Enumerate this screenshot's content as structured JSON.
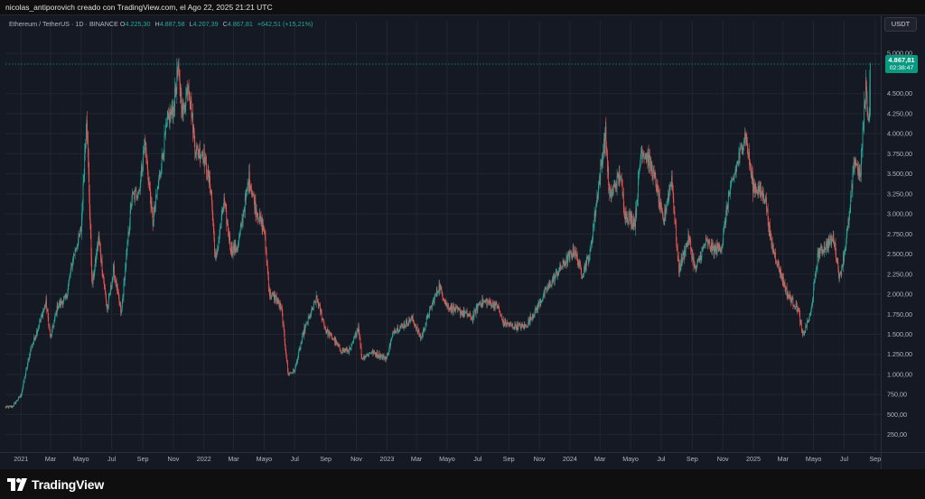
{
  "header": {
    "caption": "nicolas_antiporovich creado con TradingView.com, el Ago 22, 2025 21:21 UTC"
  },
  "legend": {
    "symbol": "Ethereum / TetherUS · 1D · BINANCE",
    "open_label": "O",
    "open": "4.225,30",
    "high_label": "H",
    "high": "4.887,58",
    "low_label": "L",
    "low": "4.207,39",
    "close_label": "C",
    "close": "4.867,81",
    "change": "+642,51 (+15,21%)"
  },
  "currency_button": "USDT",
  "price_badge": {
    "price": "4.867,81",
    "countdown": "02:38:47"
  },
  "brand": {
    "name": "TradingView"
  },
  "colors": {
    "up": "#26a69a",
    "down": "#ef5350",
    "background": "#141923",
    "grid": "#222631",
    "badge": "#089981"
  },
  "chart_data": {
    "type": "candlestick",
    "interval": "1D",
    "y_axis": {
      "ticks": [
        250,
        500,
        750,
        1000,
        1250,
        1500,
        1750,
        2000,
        2250,
        2500,
        2750,
        3000,
        3250,
        3500,
        3750,
        4000,
        4250,
        4500,
        5000
      ],
      "tick_labels": [
        "250,00",
        "500,00",
        "750,00",
        "1.000,00",
        "1.250,00",
        "1.500,00",
        "1.750,00",
        "2.000,00",
        "2.250,00",
        "2.500,00",
        "2.750,00",
        "3.000,00",
        "3.250,00",
        "3.500,00",
        "3.750,00",
        "4.000,00",
        "4.250,00",
        "4.500,00",
        "5.000,00"
      ],
      "range": [
        100,
        5250
      ],
      "position": "right"
    },
    "x_axis": {
      "ticks": [
        "2021-01-01",
        "2021-03-01",
        "2021-05-01",
        "2021-07-01",
        "2021-09-01",
        "2021-11-01",
        "2022-01-01",
        "2022-03-01",
        "2022-05-01",
        "2022-07-01",
        "2022-09-01",
        "2022-11-01",
        "2023-01-01",
        "2023-03-01",
        "2023-05-01",
        "2023-07-01",
        "2023-09-01",
        "2023-11-01",
        "2024-01-01",
        "2024-03-01",
        "2024-05-01",
        "2024-07-01",
        "2024-09-01",
        "2024-11-01",
        "2025-01-01",
        "2025-03-01",
        "2025-05-01",
        "2025-07-01",
        "2025-09-01"
      ],
      "tick_labels": [
        "2021",
        "Mar",
        "Mayo",
        "Jul",
        "Sep",
        "Nov",
        "2022",
        "Mar",
        "Mayo",
        "Jul",
        "Sep",
        "Nov",
        "2023",
        "Mar",
        "Mayo",
        "Jul",
        "Sep",
        "Nov",
        "2024",
        "Mar",
        "Mayo",
        "Jul",
        "Sep",
        "Nov",
        "2025",
        "Mar",
        "Mayo",
        "Jul",
        "Sep"
      ],
      "range": [
        "2020-12-01",
        "2025-09-12"
      ]
    },
    "grid": true,
    "last_price_line": 4867.81,
    "path": [
      [
        "2020-12-01",
        590
      ],
      [
        "2020-12-15",
        600
      ],
      [
        "2021-01-01",
        740
      ],
      [
        "2021-01-20",
        1300
      ],
      [
        "2021-02-05",
        1600
      ],
      [
        "2021-02-20",
        1900
      ],
      [
        "2021-03-01",
        1450
      ],
      [
        "2021-03-15",
        1850
      ],
      [
        "2021-04-01",
        1950
      ],
      [
        "2021-04-15",
        2450
      ],
      [
        "2021-05-01",
        2800
      ],
      [
        "2021-05-12",
        4250
      ],
      [
        "2021-05-23",
        2100
      ],
      [
        "2021-06-05",
        2700
      ],
      [
        "2021-06-22",
        1800
      ],
      [
        "2021-07-05",
        2300
      ],
      [
        "2021-07-20",
        1750
      ],
      [
        "2021-08-10",
        3200
      ],
      [
        "2021-08-25",
        3300
      ],
      [
        "2021-09-05",
        3900
      ],
      [
        "2021-09-21",
        2900
      ],
      [
        "2021-10-05",
        3500
      ],
      [
        "2021-10-20",
        4150
      ],
      [
        "2021-11-01",
        4300
      ],
      [
        "2021-11-10",
        4800
      ],
      [
        "2021-11-20",
        4250
      ],
      [
        "2021-12-01",
        4650
      ],
      [
        "2021-12-15",
        3800
      ],
      [
        "2021-12-31",
        3750
      ],
      [
        "2022-01-15",
        3300
      ],
      [
        "2022-01-24",
        2400
      ],
      [
        "2022-02-10",
        3150
      ],
      [
        "2022-02-24",
        2550
      ],
      [
        "2022-03-10",
        2600
      ],
      [
        "2022-04-01",
        3450
      ],
      [
        "2022-04-15",
        3050
      ],
      [
        "2022-05-01",
        2800
      ],
      [
        "2022-05-12",
        2000
      ],
      [
        "2022-05-25",
        1950
      ],
      [
        "2022-06-05",
        1800
      ],
      [
        "2022-06-18",
        1000
      ],
      [
        "2022-07-01",
        1050
      ],
      [
        "2022-07-20",
        1550
      ],
      [
        "2022-08-14",
        1950
      ],
      [
        "2022-09-01",
        1550
      ],
      [
        "2022-09-15",
        1450
      ],
      [
        "2022-10-01",
        1300
      ],
      [
        "2022-10-20",
        1300
      ],
      [
        "2022-11-05",
        1600
      ],
      [
        "2022-11-12",
        1200
      ],
      [
        "2022-12-01",
        1280
      ],
      [
        "2022-12-31",
        1200
      ],
      [
        "2023-01-15",
        1550
      ],
      [
        "2023-02-01",
        1600
      ],
      [
        "2023-02-20",
        1700
      ],
      [
        "2023-03-10",
        1450
      ],
      [
        "2023-03-25",
        1750
      ],
      [
        "2023-04-15",
        2100
      ],
      [
        "2023-05-01",
        1850
      ],
      [
        "2023-05-20",
        1800
      ],
      [
        "2023-06-10",
        1750
      ],
      [
        "2023-06-20",
        1700
      ],
      [
        "2023-07-05",
        1900
      ],
      [
        "2023-07-20",
        1900
      ],
      [
        "2023-08-10",
        1850
      ],
      [
        "2023-08-20",
        1650
      ],
      [
        "2023-09-10",
        1600
      ],
      [
        "2023-10-05",
        1600
      ],
      [
        "2023-10-25",
        1800
      ],
      [
        "2023-11-15",
        2050
      ],
      [
        "2023-12-10",
        2300
      ],
      [
        "2024-01-10",
        2550
      ],
      [
        "2024-01-25",
        2250
      ],
      [
        "2024-02-10",
        2500
      ],
      [
        "2024-02-28",
        3400
      ],
      [
        "2024-03-12",
        4000
      ],
      [
        "2024-03-20",
        3200
      ],
      [
        "2024-04-10",
        3500
      ],
      [
        "2024-04-20",
        3000
      ],
      [
        "2024-05-10",
        2900
      ],
      [
        "2024-05-22",
        3800
      ],
      [
        "2024-06-05",
        3700
      ],
      [
        "2024-06-20",
        3400
      ],
      [
        "2024-07-05",
        2900
      ],
      [
        "2024-07-22",
        3450
      ],
      [
        "2024-08-05",
        2300
      ],
      [
        "2024-08-25",
        2700
      ],
      [
        "2024-09-07",
        2300
      ],
      [
        "2024-09-28",
        2650
      ],
      [
        "2024-10-15",
        2550
      ],
      [
        "2024-10-30",
        2600
      ],
      [
        "2024-11-12",
        3200
      ],
      [
        "2024-12-01",
        3650
      ],
      [
        "2024-12-16",
        4000
      ],
      [
        "2024-12-31",
        3350
      ],
      [
        "2025-01-10",
        3300
      ],
      [
        "2025-01-25",
        3200
      ],
      [
        "2025-02-05",
        2650
      ],
      [
        "2025-02-25",
        2250
      ],
      [
        "2025-03-10",
        2000
      ],
      [
        "2025-04-01",
        1800
      ],
      [
        "2025-04-09",
        1480
      ],
      [
        "2025-04-25",
        1750
      ],
      [
        "2025-05-10",
        2500
      ],
      [
        "2025-05-25",
        2600
      ],
      [
        "2025-06-10",
        2700
      ],
      [
        "2025-06-22",
        2200
      ],
      [
        "2025-07-01",
        2500
      ],
      [
        "2025-07-12",
        3000
      ],
      [
        "2025-07-22",
        3700
      ],
      [
        "2025-08-02",
        3450
      ],
      [
        "2025-08-13",
        4600
      ],
      [
        "2025-08-19",
        4150
      ],
      [
        "2025-08-22",
        4867.81
      ]
    ]
  }
}
